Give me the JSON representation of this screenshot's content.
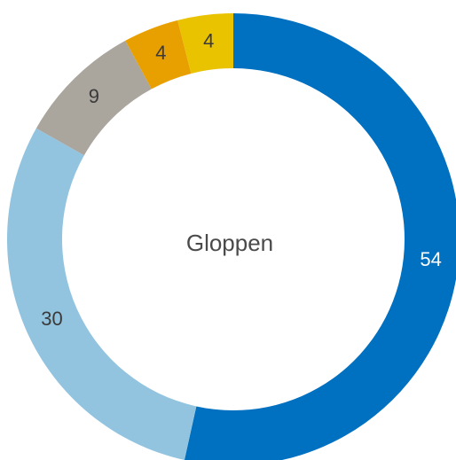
{
  "chart_data": {
    "type": "donut",
    "title": "Gloppen",
    "categories": [
      null,
      null,
      null,
      null,
      null
    ],
    "values": [
      54,
      30,
      9,
      4,
      4
    ],
    "colors": [
      "#0070c0",
      "#92c4e0",
      "#aaa59d",
      "#e8a000",
      "#e9c200"
    ],
    "label_colors": [
      "#ffffff",
      "#3a3a3a",
      "#3a3a3a",
      "#3a3a3a",
      "#3a3a3a"
    ]
  }
}
